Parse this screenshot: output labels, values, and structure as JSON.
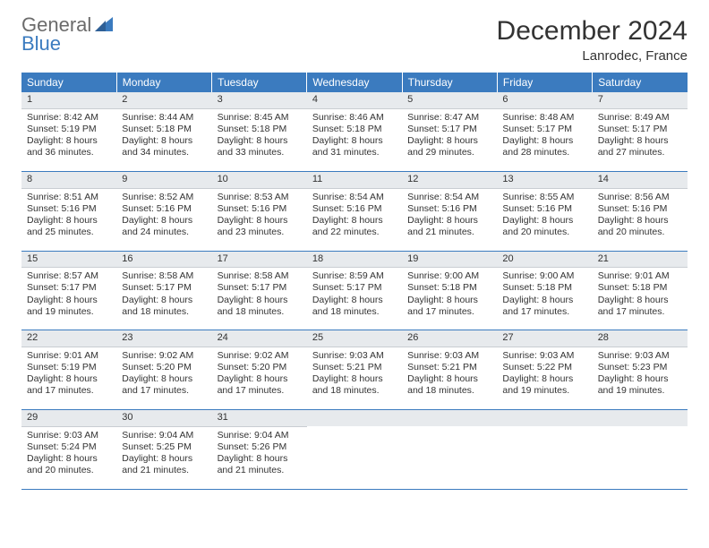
{
  "brand": {
    "word1": "General",
    "word2": "Blue",
    "text_gray": "#6b6b6b",
    "text_blue": "#3b7bbf"
  },
  "title": "December 2024",
  "subtitle": "Lanrodec, France",
  "theme": {
    "header_bg": "#3b7bbf",
    "header_fg": "#ffffff",
    "band_bg": "#e7eaed",
    "rule_color": "#3b7bbf"
  },
  "weekday_labels": [
    "Sunday",
    "Monday",
    "Tuesday",
    "Wednesday",
    "Thursday",
    "Friday",
    "Saturday"
  ],
  "weeks": [
    [
      {
        "n": "1",
        "sr": "8:42 AM",
        "ss": "5:19 PM",
        "dl": "8 hours and 36 minutes."
      },
      {
        "n": "2",
        "sr": "8:44 AM",
        "ss": "5:18 PM",
        "dl": "8 hours and 34 minutes."
      },
      {
        "n": "3",
        "sr": "8:45 AM",
        "ss": "5:18 PM",
        "dl": "8 hours and 33 minutes."
      },
      {
        "n": "4",
        "sr": "8:46 AM",
        "ss": "5:18 PM",
        "dl": "8 hours and 31 minutes."
      },
      {
        "n": "5",
        "sr": "8:47 AM",
        "ss": "5:17 PM",
        "dl": "8 hours and 29 minutes."
      },
      {
        "n": "6",
        "sr": "8:48 AM",
        "ss": "5:17 PM",
        "dl": "8 hours and 28 minutes."
      },
      {
        "n": "7",
        "sr": "8:49 AM",
        "ss": "5:17 PM",
        "dl": "8 hours and 27 minutes."
      }
    ],
    [
      {
        "n": "8",
        "sr": "8:51 AM",
        "ss": "5:16 PM",
        "dl": "8 hours and 25 minutes."
      },
      {
        "n": "9",
        "sr": "8:52 AM",
        "ss": "5:16 PM",
        "dl": "8 hours and 24 minutes."
      },
      {
        "n": "10",
        "sr": "8:53 AM",
        "ss": "5:16 PM",
        "dl": "8 hours and 23 minutes."
      },
      {
        "n": "11",
        "sr": "8:54 AM",
        "ss": "5:16 PM",
        "dl": "8 hours and 22 minutes."
      },
      {
        "n": "12",
        "sr": "8:54 AM",
        "ss": "5:16 PM",
        "dl": "8 hours and 21 minutes."
      },
      {
        "n": "13",
        "sr": "8:55 AM",
        "ss": "5:16 PM",
        "dl": "8 hours and 20 minutes."
      },
      {
        "n": "14",
        "sr": "8:56 AM",
        "ss": "5:16 PM",
        "dl": "8 hours and 20 minutes."
      }
    ],
    [
      {
        "n": "15",
        "sr": "8:57 AM",
        "ss": "5:17 PM",
        "dl": "8 hours and 19 minutes."
      },
      {
        "n": "16",
        "sr": "8:58 AM",
        "ss": "5:17 PM",
        "dl": "8 hours and 18 minutes."
      },
      {
        "n": "17",
        "sr": "8:58 AM",
        "ss": "5:17 PM",
        "dl": "8 hours and 18 minutes."
      },
      {
        "n": "18",
        "sr": "8:59 AM",
        "ss": "5:17 PM",
        "dl": "8 hours and 18 minutes."
      },
      {
        "n": "19",
        "sr": "9:00 AM",
        "ss": "5:18 PM",
        "dl": "8 hours and 17 minutes."
      },
      {
        "n": "20",
        "sr": "9:00 AM",
        "ss": "5:18 PM",
        "dl": "8 hours and 17 minutes."
      },
      {
        "n": "21",
        "sr": "9:01 AM",
        "ss": "5:18 PM",
        "dl": "8 hours and 17 minutes."
      }
    ],
    [
      {
        "n": "22",
        "sr": "9:01 AM",
        "ss": "5:19 PM",
        "dl": "8 hours and 17 minutes."
      },
      {
        "n": "23",
        "sr": "9:02 AM",
        "ss": "5:20 PM",
        "dl": "8 hours and 17 minutes."
      },
      {
        "n": "24",
        "sr": "9:02 AM",
        "ss": "5:20 PM",
        "dl": "8 hours and 17 minutes."
      },
      {
        "n": "25",
        "sr": "9:03 AM",
        "ss": "5:21 PM",
        "dl": "8 hours and 18 minutes."
      },
      {
        "n": "26",
        "sr": "9:03 AM",
        "ss": "5:21 PM",
        "dl": "8 hours and 18 minutes."
      },
      {
        "n": "27",
        "sr": "9:03 AM",
        "ss": "5:22 PM",
        "dl": "8 hours and 19 minutes."
      },
      {
        "n": "28",
        "sr": "9:03 AM",
        "ss": "5:23 PM",
        "dl": "8 hours and 19 minutes."
      }
    ],
    [
      {
        "n": "29",
        "sr": "9:03 AM",
        "ss": "5:24 PM",
        "dl": "8 hours and 20 minutes."
      },
      {
        "n": "30",
        "sr": "9:04 AM",
        "ss": "5:25 PM",
        "dl": "8 hours and 21 minutes."
      },
      {
        "n": "31",
        "sr": "9:04 AM",
        "ss": "5:26 PM",
        "dl": "8 hours and 21 minutes."
      },
      null,
      null,
      null,
      null
    ]
  ],
  "labels": {
    "sunrise": "Sunrise: ",
    "sunset": "Sunset: ",
    "daylight": "Daylight: "
  }
}
